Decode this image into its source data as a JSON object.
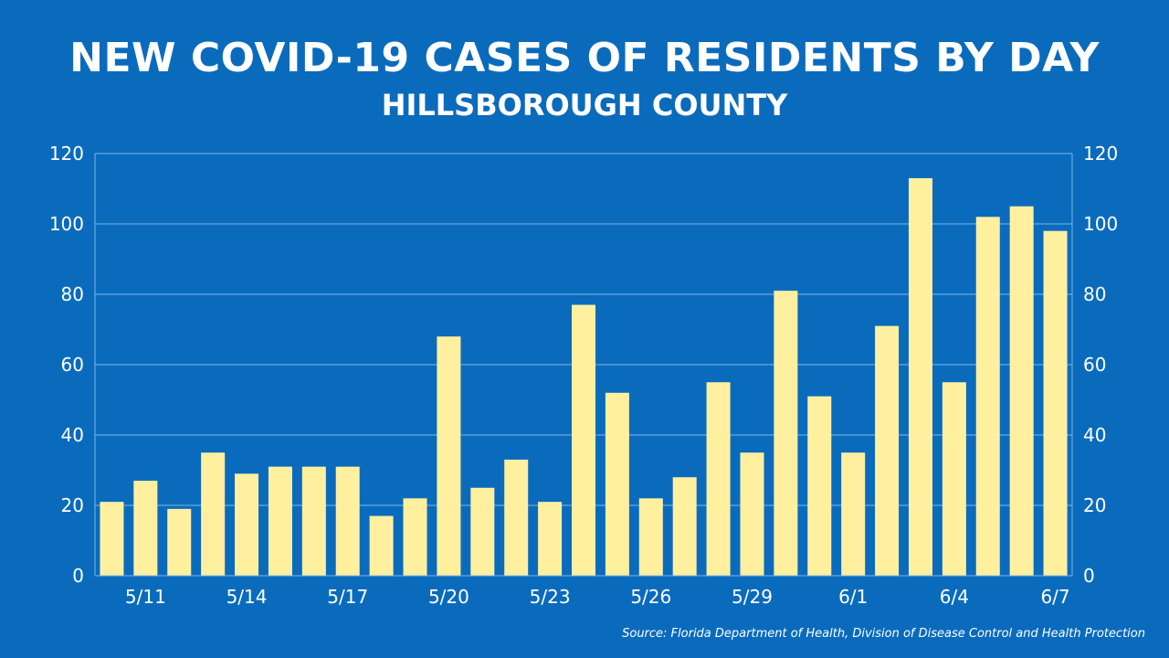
{
  "header": {
    "title": "NEW COVID-19 CASES OF RESIDENTS BY DAY",
    "subtitle": "HILLSBOROUGH COUNTY"
  },
  "footer": {
    "source": "Source: Florida Department of Health, Division of Disease Control and Health Protection"
  },
  "colors": {
    "background": "#0a6bbd",
    "bar": "#fff0a0",
    "grid": "#7fb6e6",
    "text": "#ffffff"
  },
  "chart_data": {
    "type": "bar",
    "title": "NEW COVID-19 CASES OF RESIDENTS BY DAY",
    "subtitle": "HILLSBOROUGH COUNTY",
    "xlabel": "",
    "ylabel": "",
    "ylim": [
      0,
      120
    ],
    "yticks": [
      0,
      20,
      40,
      60,
      80,
      100,
      120
    ],
    "y_axis_both_sides": true,
    "grid": true,
    "categories": [
      "5/10",
      "5/11",
      "5/12",
      "5/13",
      "5/14",
      "5/15",
      "5/16",
      "5/17",
      "5/18",
      "5/19",
      "5/20",
      "5/21",
      "5/22",
      "5/23",
      "5/24",
      "5/25",
      "5/26",
      "5/27",
      "5/28",
      "5/29",
      "5/30",
      "5/31",
      "6/1",
      "6/2",
      "6/3",
      "6/4",
      "6/5",
      "6/6",
      "6/7"
    ],
    "values": [
      21,
      27,
      19,
      35,
      29,
      31,
      31,
      31,
      17,
      22,
      68,
      25,
      33,
      21,
      77,
      52,
      22,
      28,
      55,
      35,
      81,
      51,
      35,
      71,
      113,
      55,
      102,
      105,
      98
    ],
    "x_tick_labels": [
      "5/11",
      "5/14",
      "5/17",
      "5/20",
      "5/23",
      "5/26",
      "5/29",
      "6/1",
      "6/4",
      "6/7"
    ]
  }
}
